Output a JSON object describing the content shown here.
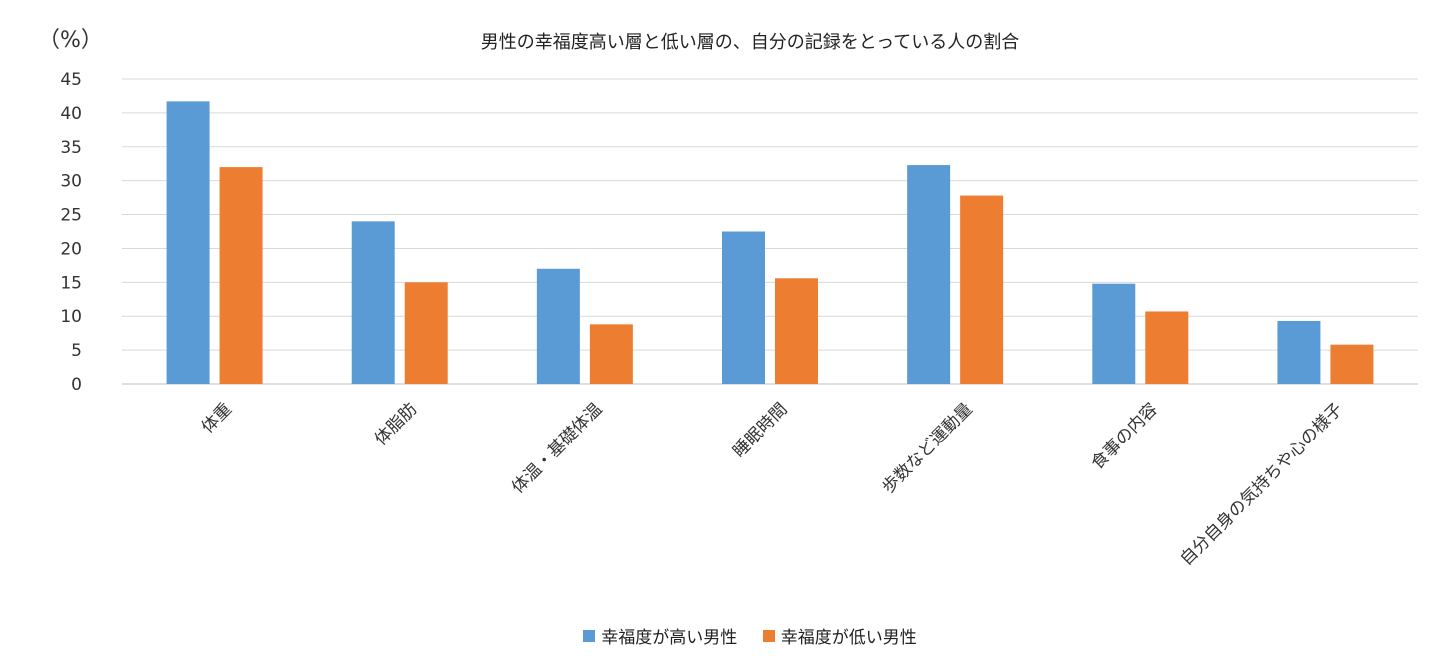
{
  "chart_data": {
    "type": "bar",
    "title": "男性の幸福度高い層と低い層の、自分の記録をとっている人の割合",
    "unit_label": "（%）",
    "categories": [
      "体重",
      "体脂肪",
      "体温・基礎体温",
      "睡眠時間",
      "歩数など運動量",
      "食事の内容",
      "自分自身の気持ちや心の様子"
    ],
    "series": [
      {
        "name": "幸福度が高い男性",
        "color": "#5b9bd5",
        "values": [
          41.7,
          24.0,
          17.0,
          22.5,
          32.3,
          14.8,
          9.3
        ]
      },
      {
        "name": "幸福度が低い男性",
        "color": "#ed7d31",
        "values": [
          32.0,
          15.0,
          8.8,
          15.6,
          27.8,
          10.7,
          5.8
        ]
      }
    ],
    "ylim": [
      0,
      45
    ],
    "yticks": [
      0,
      5,
      10,
      15,
      20,
      25,
      30,
      35,
      40,
      45
    ],
    "grid": true,
    "legend_position": "bottom"
  }
}
